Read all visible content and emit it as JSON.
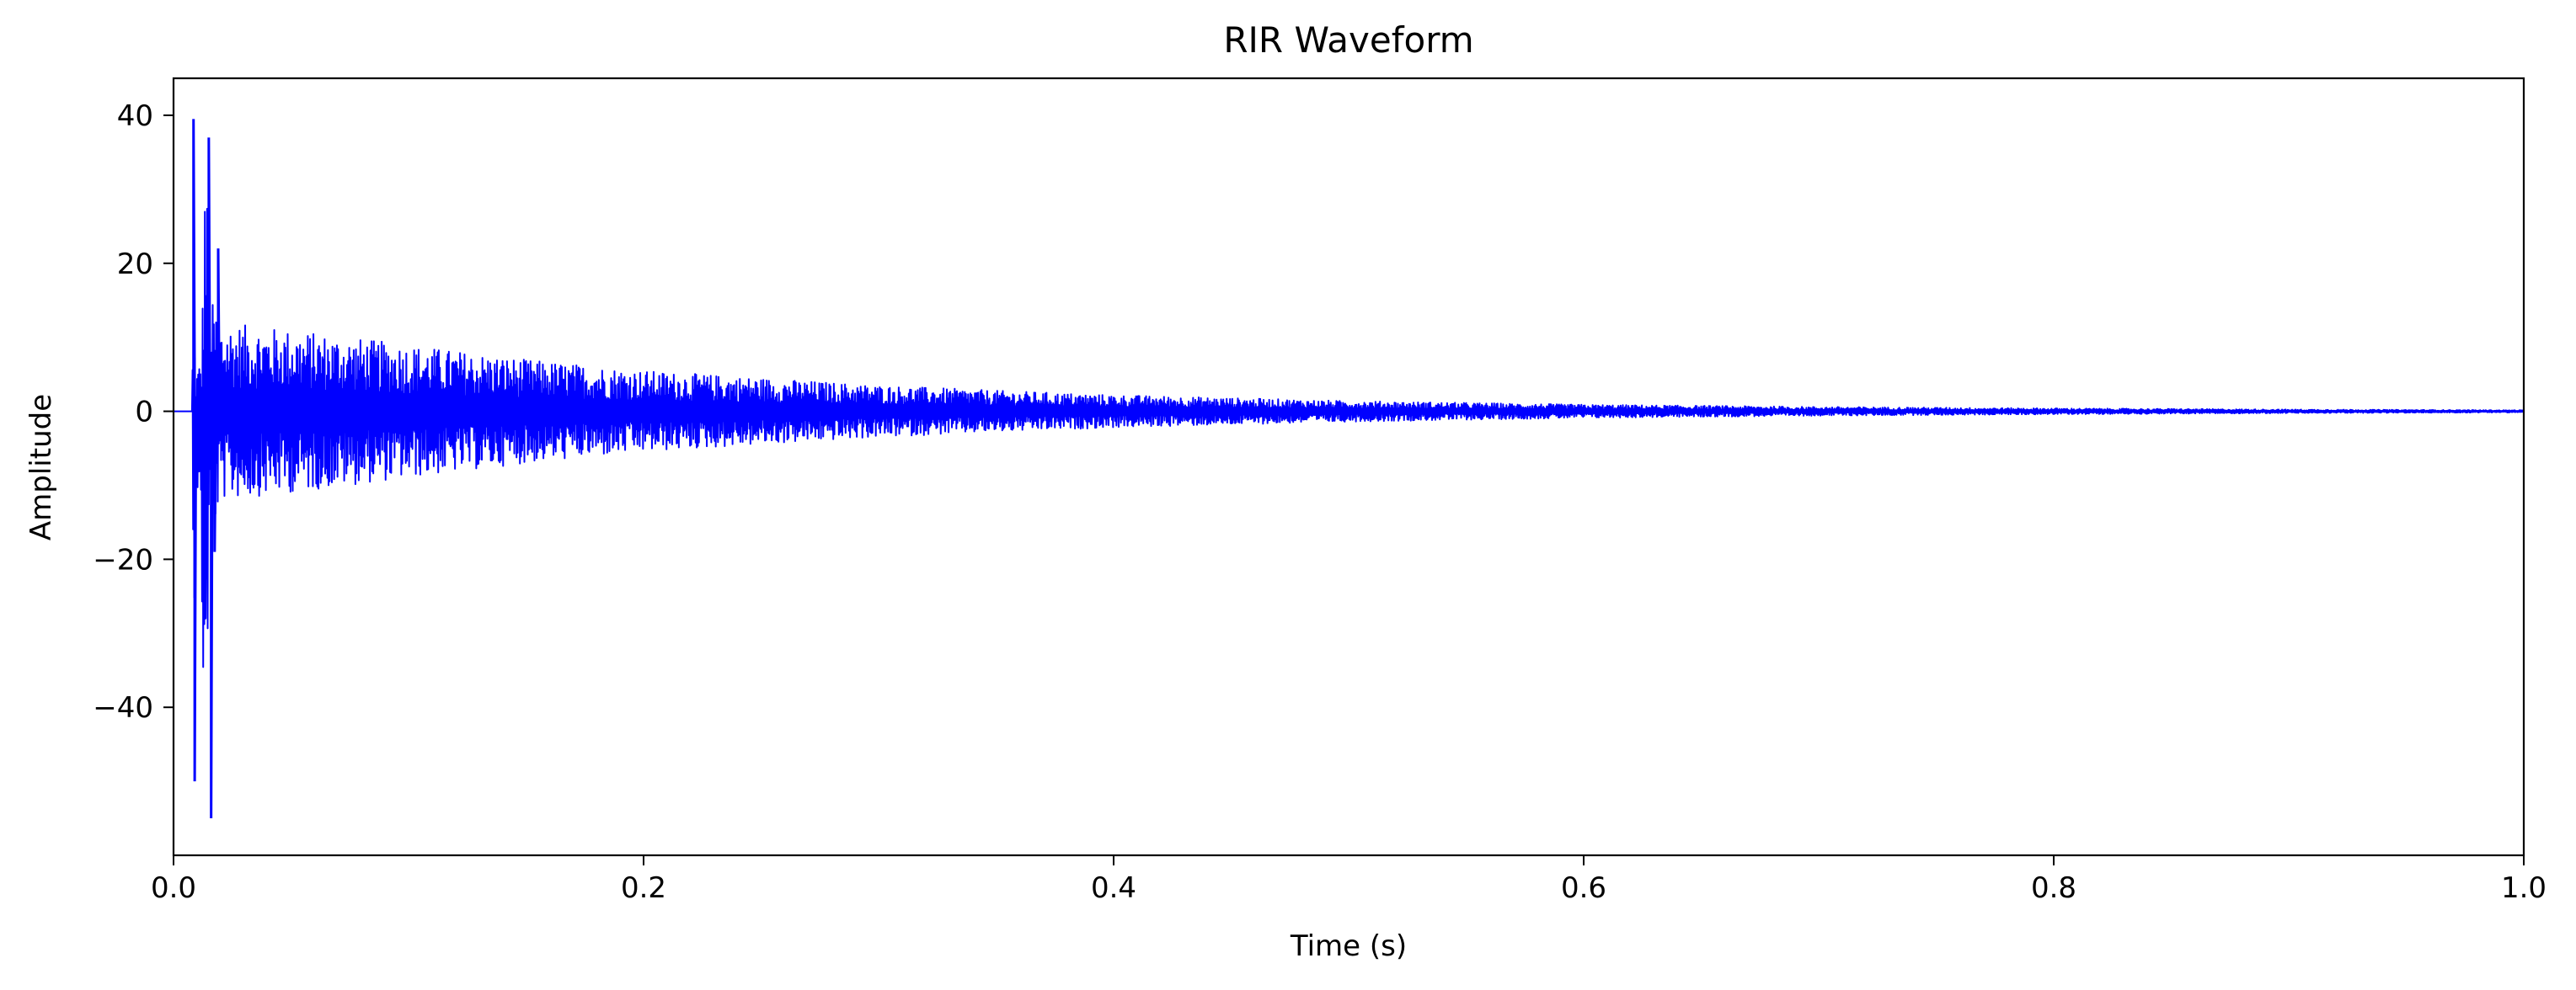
{
  "chart_data": {
    "type": "line",
    "title": "RIR Waveform",
    "xlabel": "Time (s)",
    "ylabel": "Amplitude",
    "xlim": [
      0.0,
      1.0
    ],
    "ylim": [
      -60,
      45
    ],
    "x_ticks": [
      0.0,
      0.2,
      0.4,
      0.6,
      0.8,
      1.0
    ],
    "x_tick_labels": [
      "0.0",
      "0.2",
      "0.4",
      "0.6",
      "0.8",
      "1.0"
    ],
    "y_ticks": [
      40,
      20,
      0,
      -20,
      -40
    ],
    "y_tick_labels": [
      "40",
      "20",
      "0",
      "−20",
      "−40"
    ],
    "grid": false,
    "legend": "none",
    "line_color": "#0000ff",
    "series": [
      {
        "envelope": {
          "t": [
            0.0,
            0.008,
            0.0085,
            0.009,
            0.0095,
            0.012,
            0.0135,
            0.015,
            0.016,
            0.018,
            0.02,
            0.05,
            0.1,
            0.15,
            0.2,
            0.25,
            0.3,
            0.35,
            0.4,
            0.5,
            0.6,
            0.7,
            0.8,
            0.9,
            1.0
          ],
          "max": [
            0.0,
            0.0,
            39.5,
            10.0,
            5.0,
            8.0,
            37.0,
            22.0,
            15.0,
            14.0,
            12.0,
            11.0,
            9.0,
            7.0,
            5.5,
            4.5,
            3.5,
            2.8,
            2.2,
            1.4,
            0.9,
            0.6,
            0.4,
            0.25,
            0.15
          ],
          "min": [
            0.0,
            0.0,
            -50.0,
            -10.0,
            -5.0,
            -28.0,
            -55.0,
            -22.0,
            -19.0,
            -15.0,
            -12.0,
            -11.0,
            -9.0,
            -7.0,
            -5.5,
            -4.5,
            -3.5,
            -2.8,
            -2.2,
            -1.4,
            -0.9,
            -0.6,
            -0.4,
            -0.25,
            -0.15
          ]
        }
      }
    ]
  }
}
